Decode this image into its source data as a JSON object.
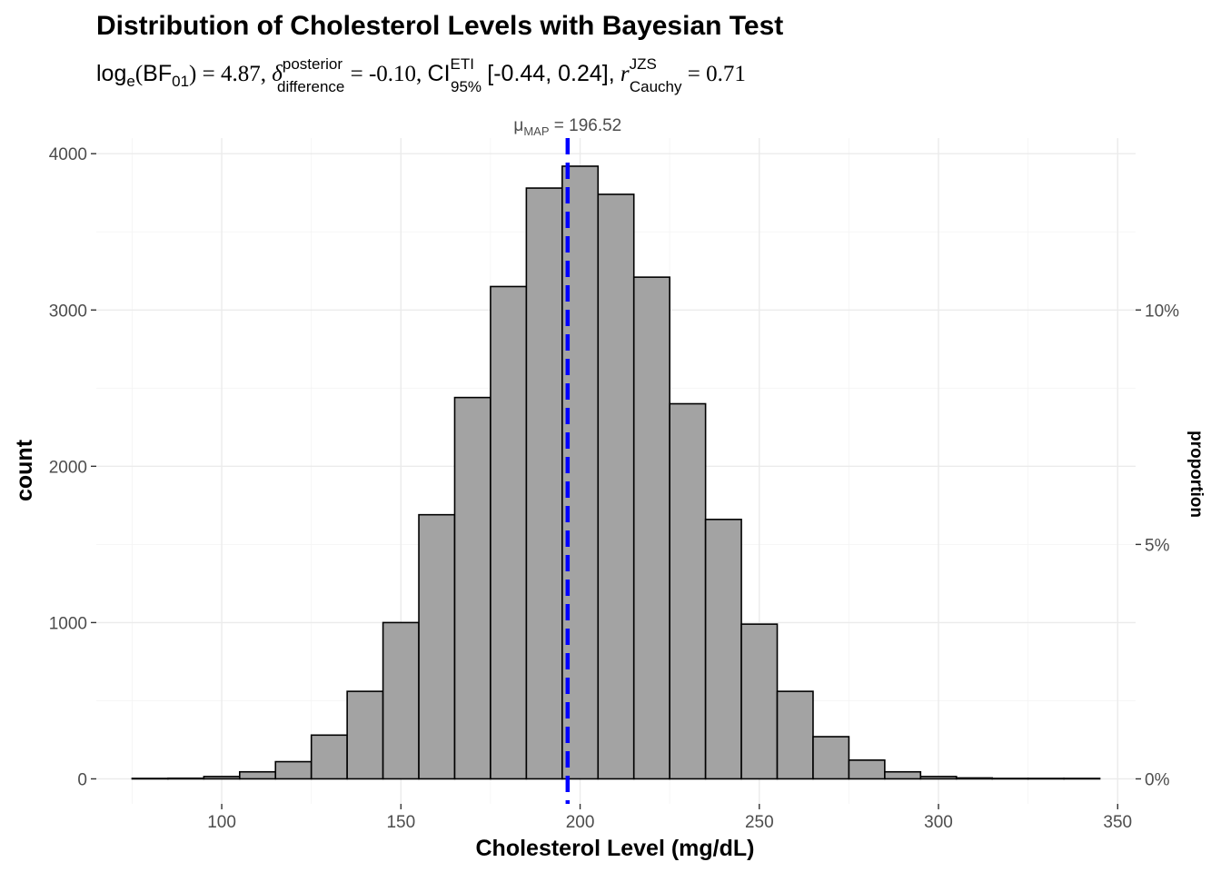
{
  "chart_data": {
    "type": "bar",
    "title": "Distribution of Cholesterol Levels with Bayesian Test",
    "subtitle": {
      "log_prefix": "log",
      "log_base": "e",
      "bf_name": "BF",
      "bf_sub": "01",
      "bf_value": "= 4.87,",
      "delta_symbol": "δ",
      "delta_sup": "posterior",
      "delta_sub": "difference",
      "delta_value": "= -0.10,",
      "ci_name": "CI",
      "ci_sup": "ETI",
      "ci_sub": "95%",
      "ci_value": "[-0.44, 0.24],",
      "r_symbol": "r",
      "r_sup": "JZS",
      "r_sub": "Cauchy",
      "r_value": "= 0.71"
    },
    "xlabel": "Cholesterol Level (mg/dL)",
    "ylabel": "count",
    "y2label": "proportion",
    "xlim": [
      65,
      355
    ],
    "ylim": [
      -160,
      4100
    ],
    "x_ticks": [
      100,
      150,
      200,
      250,
      300,
      350
    ],
    "y_ticks": [
      0,
      1000,
      2000,
      3000,
      4000
    ],
    "y2_ticks": [
      {
        "value": 0,
        "label": "0%"
      },
      {
        "value": 1500,
        "label": "5%"
      },
      {
        "value": 3000,
        "label": "10%"
      }
    ],
    "bin_width": 10,
    "bin_centers": [
      80,
      90,
      100,
      110,
      120,
      130,
      140,
      150,
      160,
      170,
      180,
      190,
      200,
      210,
      220,
      230,
      240,
      250,
      260,
      270,
      280,
      290,
      300,
      310,
      320,
      330,
      340
    ],
    "counts": [
      1,
      4,
      15,
      45,
      110,
      280,
      560,
      1000,
      1690,
      2440,
      3150,
      3780,
      3920,
      3740,
      3210,
      2400,
      1660,
      990,
      560,
      270,
      120,
      45,
      15,
      6,
      2,
      1,
      0
    ],
    "bar_color": "#a3a3a3",
    "centrality": {
      "label_symbol": "μ",
      "label_sub": "MAP",
      "label_value": "= 196.52",
      "value": 196.52,
      "color": "#0000ff",
      "style": "dashed"
    },
    "grid": true,
    "legend": "none"
  }
}
